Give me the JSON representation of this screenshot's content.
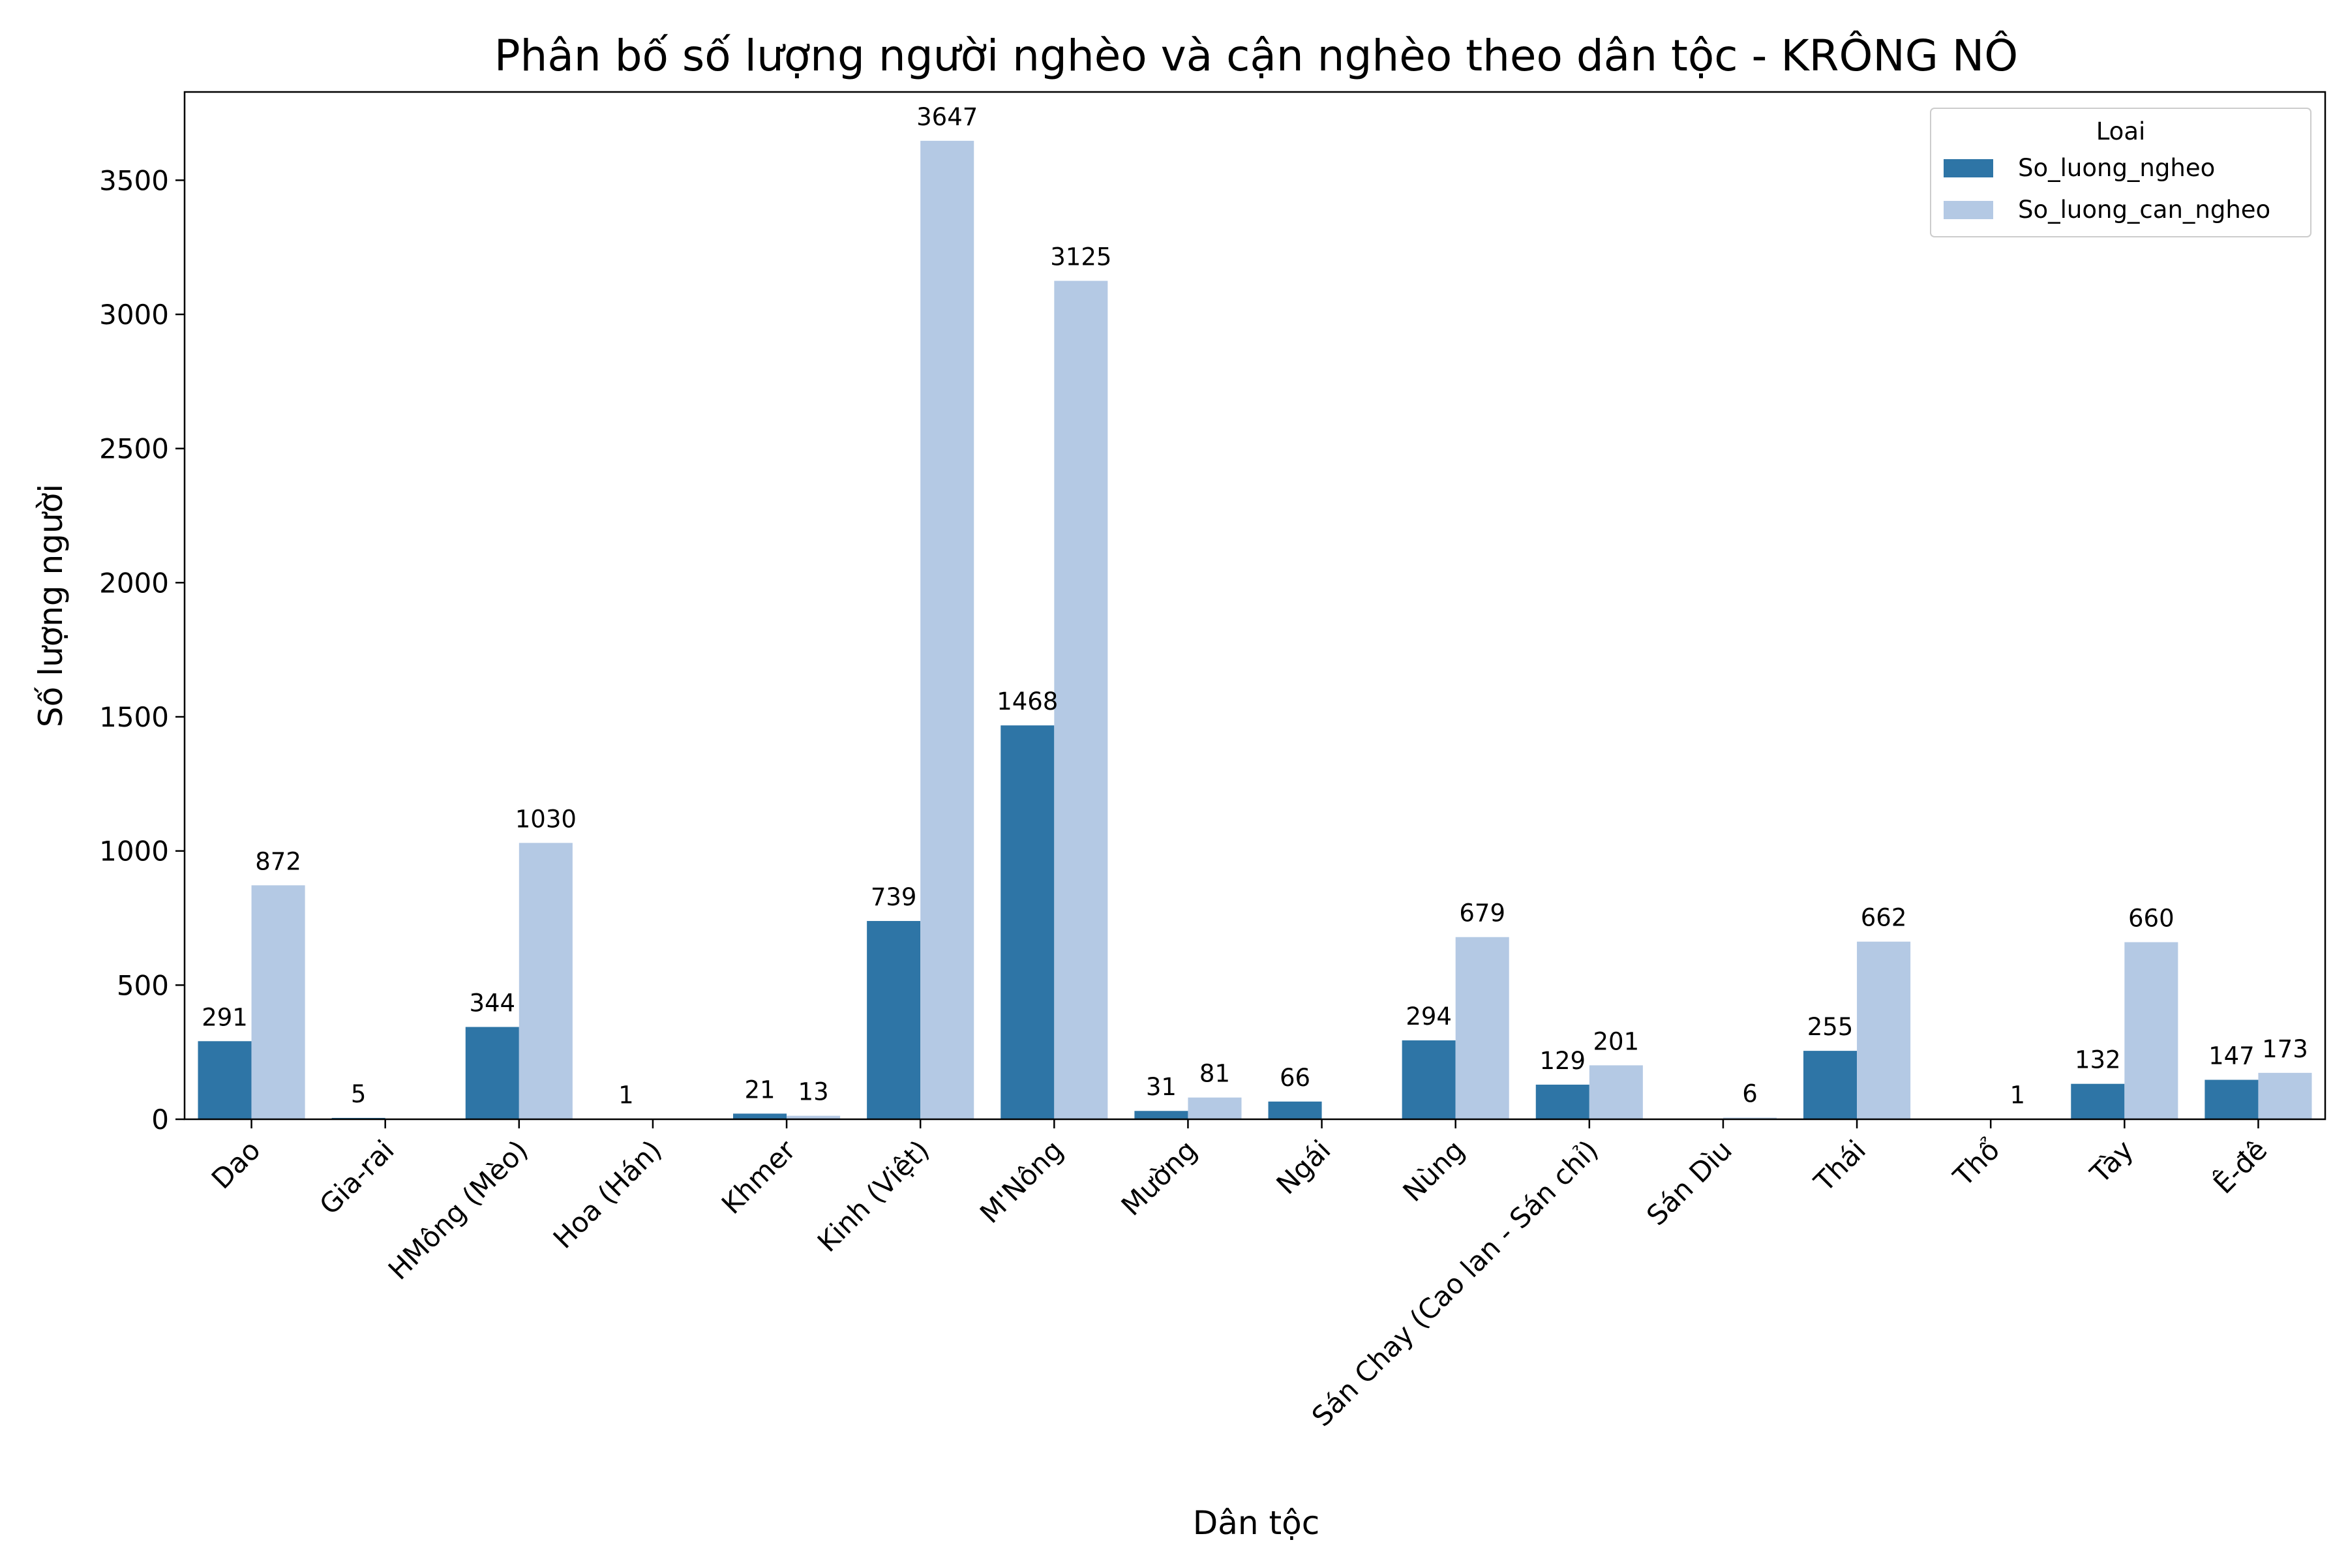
{
  "chart_data": {
    "type": "bar",
    "title": "Phân bố số lượng người nghèo và cận nghèo theo dân tộc - KRÔNG NÔ",
    "xlabel": "Dân tộc",
    "ylabel": "Số lượng người",
    "categories": [
      "Dao",
      "Gia-rai",
      "HMông (Mèo)",
      "Hoa (Hán)",
      "Khmer",
      "Kinh (Việt)",
      "M'Nông",
      "Mường",
      "Ngái",
      "Nùng",
      "Sán Chay (Cao lan - Sán chỉ)",
      "Sán Dìu",
      "Thái",
      "Thổ",
      "Tày",
      "Ê-đê"
    ],
    "series": [
      {
        "name": "So_luong_ngheo",
        "color": "#2e75a6",
        "values": [
          291,
          5,
          344,
          1,
          21,
          739,
          1468,
          31,
          66,
          294,
          129,
          null,
          255,
          null,
          132,
          147
        ]
      },
      {
        "name": "So_luong_can_ngheo",
        "color": "#b4c9e4",
        "values": [
          872,
          null,
          1030,
          null,
          13,
          3647,
          3125,
          81,
          null,
          679,
          201,
          6,
          662,
          1,
          660,
          173
        ]
      }
    ],
    "yticks": [
      0,
      500,
      1000,
      1500,
      2000,
      2500,
      3000,
      3500
    ],
    "ylim": [
      0,
      3829
    ],
    "legend": {
      "title": "Loai",
      "position": "top-right"
    },
    "grid": false
  }
}
